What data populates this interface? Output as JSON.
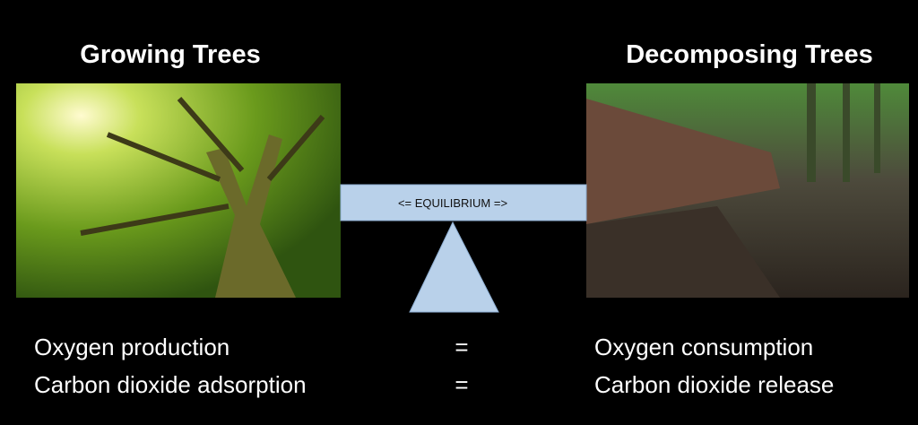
{
  "panels": [
    {
      "title": "Growing Trees"
    },
    {
      "title": "Decomposing Trees"
    }
  ],
  "balance": {
    "label": "<= EQUILIBRIUM =>"
  },
  "rows": [
    {
      "left": "Oxygen production",
      "operator": "=",
      "right": "Oxygen consumption"
    },
    {
      "left": "Carbon dioxide adsorption",
      "operator": "=",
      "right": "Carbon dioxide release"
    }
  ]
}
